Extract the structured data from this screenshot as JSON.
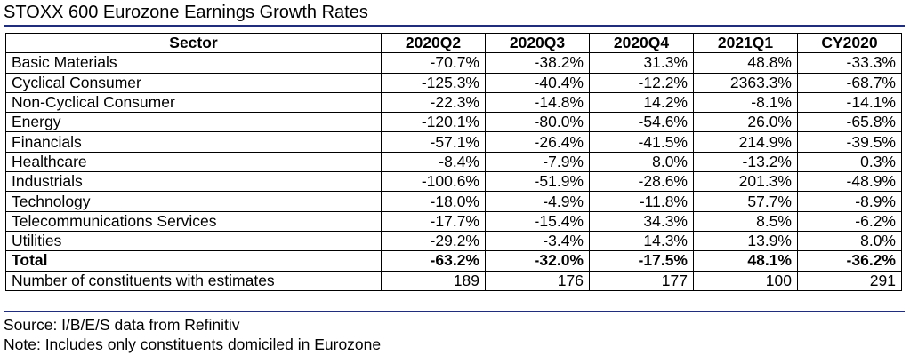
{
  "title": "STOXX 600 Eurozone Earnings Growth Rates",
  "table": {
    "headers": [
      "Sector",
      "2020Q2",
      "2020Q3",
      "2020Q4",
      "2021Q1",
      "CY2020"
    ],
    "rows": [
      {
        "sector": "Basic Materials",
        "values": [
          "-70.7%",
          "-38.2%",
          "31.3%",
          "48.8%",
          "-33.3%"
        ]
      },
      {
        "sector": "Cyclical Consumer",
        "values": [
          "-125.3%",
          "-40.4%",
          "-12.2%",
          "2363.3%",
          "-68.7%"
        ]
      },
      {
        "sector": "Non-Cyclical Consumer",
        "values": [
          "-22.3%",
          "-14.8%",
          "14.2%",
          "-8.1%",
          "-14.1%"
        ]
      },
      {
        "sector": "Energy",
        "values": [
          "-120.1%",
          "-80.0%",
          "-54.6%",
          "26.0%",
          "-65.8%"
        ]
      },
      {
        "sector": "Financials",
        "values": [
          "-57.1%",
          "-26.4%",
          "-41.5%",
          "214.9%",
          "-39.5%"
        ]
      },
      {
        "sector": "Healthcare",
        "values": [
          "-8.4%",
          "-7.9%",
          "8.0%",
          "-13.2%",
          "0.3%"
        ]
      },
      {
        "sector": "Industrials",
        "values": [
          "-100.6%",
          "-51.9%",
          "-28.6%",
          "201.3%",
          "-48.9%"
        ]
      },
      {
        "sector": "Technology",
        "values": [
          "-18.0%",
          "-4.9%",
          "-11.8%",
          "57.7%",
          "-8.9%"
        ]
      },
      {
        "sector": "Telecommunications Services",
        "values": [
          "-17.7%",
          "-15.4%",
          "34.3%",
          "8.5%",
          "-6.2%"
        ]
      },
      {
        "sector": "Utilities",
        "values": [
          "-29.2%",
          "-3.4%",
          "14.3%",
          "13.9%",
          "8.0%"
        ]
      }
    ],
    "total": {
      "sector": "Total",
      "values": [
        "-63.2%",
        "-32.0%",
        "-17.5%",
        "48.1%",
        "-36.2%"
      ]
    },
    "constituents": {
      "sector": "Number of constituents with estimates",
      "values": [
        "189",
        "176",
        "177",
        "100",
        "291"
      ]
    }
  },
  "source": "Source: I/B/E/S data from Refinitiv",
  "note": "Note: Includes only constituents domiciled in Eurozone",
  "colors": {
    "rule": "#1f2d7a",
    "border": "#000000",
    "text": "#000000"
  }
}
